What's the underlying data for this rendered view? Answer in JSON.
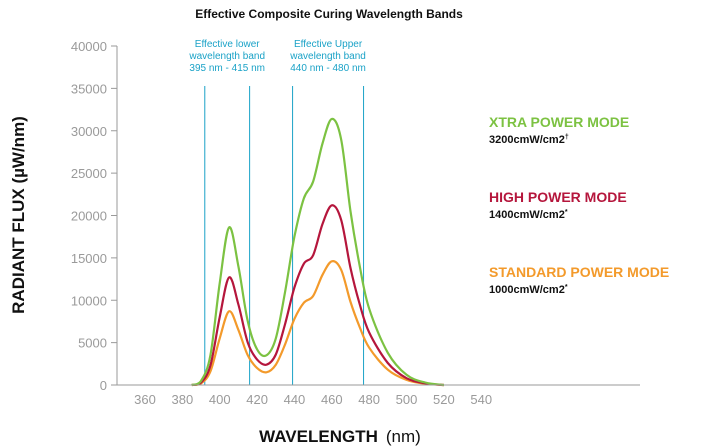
{
  "chart_data": {
    "type": "line",
    "title": "Effective Composite Curing Wavelength Bands",
    "xlabel": "WAVELENGTH",
    "xlabel_unit": "(nm)",
    "ylabel": "RADIANT FLUX (µW/nm)",
    "xlim": [
      345,
      625
    ],
    "ylim": [
      0,
      40000
    ],
    "x_ticks": [
      360,
      380,
      400,
      420,
      440,
      460,
      480,
      500,
      520,
      540
    ],
    "y_ticks": [
      0,
      5000,
      10000,
      15000,
      20000,
      25000,
      30000,
      35000,
      40000
    ],
    "grid": false,
    "bands": [
      {
        "label_lines": [
          "Effective lower",
          "wavelength band",
          "395 nm - 415 nm"
        ],
        "start": 392,
        "end": 416,
        "color": "#1aa2c7"
      },
      {
        "label_lines": [
          "Effective Upper",
          "wavelength band",
          "440 nm - 480 nm"
        ],
        "start": 439,
        "end": 477,
        "color": "#1aa2c7"
      }
    ],
    "series": [
      {
        "name": "XTRA POWER MODE",
        "power": "3200cmW/cm2",
        "power_sup": "†",
        "color": "#7cc242",
        "points": [
          [
            385,
            0
          ],
          [
            390,
            500
          ],
          [
            395,
            3500
          ],
          [
            400,
            12000
          ],
          [
            405,
            18600
          ],
          [
            410,
            14000
          ],
          [
            415,
            7500
          ],
          [
            420,
            4200
          ],
          [
            425,
            3500
          ],
          [
            430,
            5500
          ],
          [
            435,
            11000
          ],
          [
            440,
            17500
          ],
          [
            445,
            22000
          ],
          [
            450,
            24000
          ],
          [
            455,
            28500
          ],
          [
            460,
            31400
          ],
          [
            465,
            29000
          ],
          [
            470,
            20500
          ],
          [
            475,
            14000
          ],
          [
            480,
            9000
          ],
          [
            490,
            3800
          ],
          [
            500,
            1200
          ],
          [
            510,
            300
          ],
          [
            520,
            0
          ]
        ]
      },
      {
        "name": "HIGH POWER MODE",
        "power": "1400cmW/cm2",
        "power_sup": "*",
        "color": "#b5163c",
        "points": [
          [
            385,
            0
          ],
          [
            390,
            300
          ],
          [
            395,
            2300
          ],
          [
            400,
            8000
          ],
          [
            405,
            12700
          ],
          [
            410,
            9500
          ],
          [
            415,
            5000
          ],
          [
            420,
            3000
          ],
          [
            425,
            2400
          ],
          [
            430,
            3600
          ],
          [
            435,
            7200
          ],
          [
            440,
            11500
          ],
          [
            445,
            14300
          ],
          [
            450,
            15300
          ],
          [
            455,
            19000
          ],
          [
            460,
            21200
          ],
          [
            465,
            19500
          ],
          [
            470,
            13800
          ],
          [
            475,
            9500
          ],
          [
            480,
            6200
          ],
          [
            490,
            2600
          ],
          [
            500,
            800
          ],
          [
            510,
            200
          ],
          [
            520,
            0
          ]
        ]
      },
      {
        "name": "STANDARD POWER MODE",
        "power": "1000cmW/cm2",
        "power_sup": "*",
        "color": "#f39a2b",
        "points": [
          [
            385,
            0
          ],
          [
            390,
            200
          ],
          [
            395,
            1600
          ],
          [
            400,
            5500
          ],
          [
            405,
            8700
          ],
          [
            410,
            6500
          ],
          [
            415,
            3500
          ],
          [
            420,
            2000
          ],
          [
            425,
            1500
          ],
          [
            430,
            2400
          ],
          [
            435,
            4800
          ],
          [
            440,
            7800
          ],
          [
            445,
            9700
          ],
          [
            450,
            10500
          ],
          [
            455,
            13000
          ],
          [
            460,
            14600
          ],
          [
            465,
            13600
          ],
          [
            470,
            9800
          ],
          [
            475,
            6800
          ],
          [
            480,
            4400
          ],
          [
            490,
            1800
          ],
          [
            500,
            600
          ],
          [
            510,
            150
          ],
          [
            520,
            0
          ]
        ]
      }
    ]
  }
}
